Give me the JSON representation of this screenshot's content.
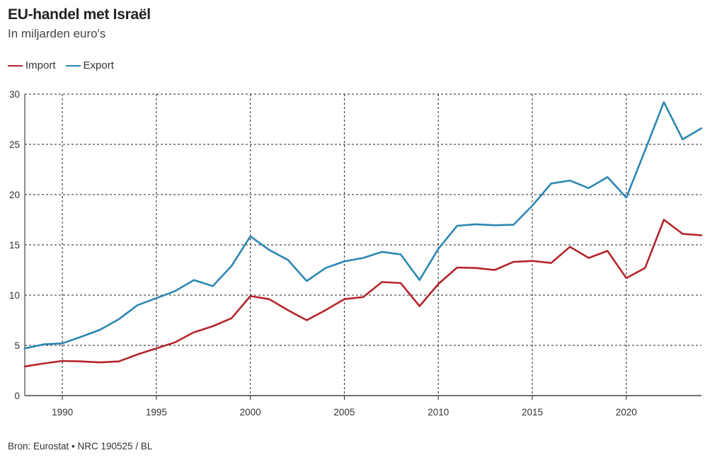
{
  "title": "EU-handel met Israël",
  "subtitle": "In miljarden euro's",
  "source": "Bron: Eurostat • NRC 190525 / BL",
  "colors": {
    "import": "#b5252a",
    "export": "#2b87b4",
    "grid": "#222222",
    "axis": "#222222"
  },
  "chart_data": {
    "type": "line",
    "title": "EU-handel met Israël",
    "subtitle": "In miljarden euro's",
    "xlabel": "",
    "ylabel": "",
    "xlim": [
      1988,
      2024
    ],
    "ylim": [
      0,
      30
    ],
    "x_ticks": [
      1990,
      1995,
      2000,
      2005,
      2010,
      2015,
      2020
    ],
    "y_ticks": [
      0,
      5,
      10,
      15,
      20,
      25,
      30
    ],
    "grid": true,
    "legend_position": "top-left",
    "x": [
      1988,
      1989,
      1990,
      1991,
      1992,
      1993,
      1994,
      1995,
      1996,
      1997,
      1998,
      1999,
      2000,
      2001,
      2002,
      2003,
      2004,
      2005,
      2006,
      2007,
      2008,
      2009,
      2010,
      2011,
      2012,
      2013,
      2014,
      2015,
      2016,
      2017,
      2018,
      2019,
      2020,
      2021,
      2022,
      2023,
      2024
    ],
    "series": [
      {
        "name": "Import",
        "color": "#b5252a",
        "values": [
          2.9,
          3.2,
          3.45,
          3.4,
          3.3,
          3.4,
          4.1,
          4.7,
          5.3,
          6.3,
          6.9,
          7.7,
          9.9,
          9.6,
          8.5,
          7.5,
          8.5,
          9.6,
          9.8,
          11.3,
          11.2,
          8.9,
          11.1,
          12.75,
          12.7,
          12.5,
          13.3,
          13.4,
          13.2,
          14.8,
          13.7,
          14.4,
          11.7,
          12.7,
          17.5,
          16.1,
          15.95
        ]
      },
      {
        "name": "Export",
        "color": "#2b87b4",
        "values": [
          4.7,
          5.1,
          5.2,
          5.85,
          6.55,
          7.6,
          9.0,
          9.7,
          10.4,
          11.5,
          10.9,
          12.9,
          15.85,
          14.5,
          13.5,
          11.4,
          12.7,
          13.35,
          13.7,
          14.3,
          14.05,
          11.5,
          14.6,
          16.9,
          17.05,
          16.95,
          17.0,
          18.9,
          21.1,
          21.4,
          20.65,
          21.75,
          19.7,
          24.4,
          29.2,
          25.5,
          26.6
        ]
      }
    ]
  }
}
